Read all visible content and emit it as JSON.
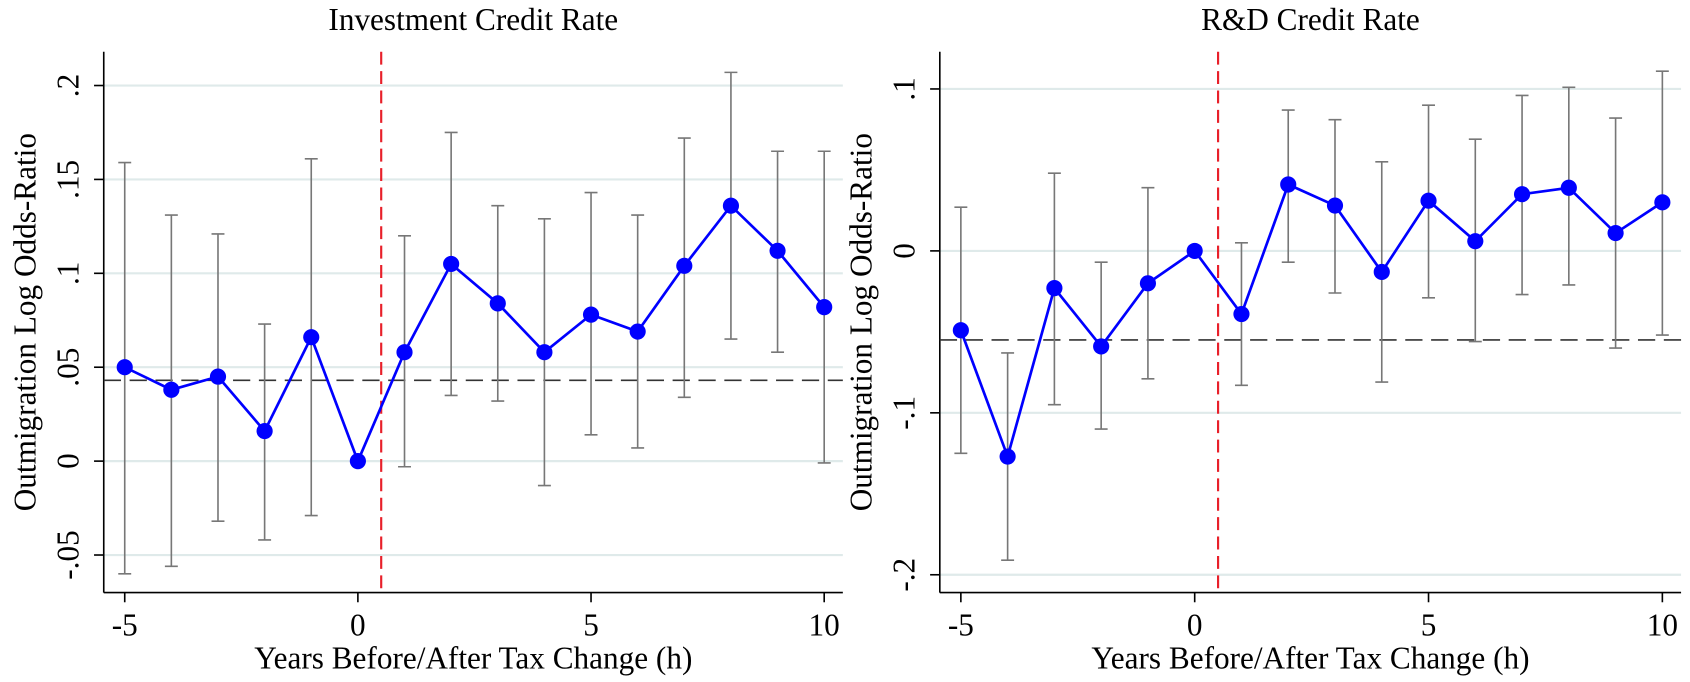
{
  "chart_data": [
    {
      "type": "errorbar-line",
      "title": "Investment Credit Rate",
      "x_label": "Years Before/After Tax Change (h)",
      "y_label": "Outmigration Log Odds-Ratio",
      "x": [
        -5,
        -4,
        -3,
        -2,
        -1,
        0,
        1,
        2,
        3,
        4,
        5,
        6,
        7,
        8,
        9,
        10
      ],
      "values": [
        0.05,
        0.038,
        0.045,
        0.016,
        0.066,
        0,
        0.058,
        0.105,
        0.084,
        0.058,
        0.078,
        0.069,
        0.104,
        0.136,
        0.112,
        0.082
      ],
      "ci_low": [
        -0.06,
        -0.056,
        -0.032,
        -0.042,
        -0.029,
        null,
        -0.003,
        0.035,
        0.032,
        -0.013,
        0.014,
        0.007,
        0.034,
        0.065,
        0.058,
        -0.001
      ],
      "ci_high": [
        0.159,
        0.131,
        0.121,
        0.073,
        0.161,
        null,
        0.12,
        0.175,
        0.136,
        0.129,
        0.143,
        0.131,
        0.172,
        0.207,
        0.165,
        0.165
      ],
      "color": "#0000ff",
      "ci_color": "#777777",
      "hline": 0.043,
      "vline": 0.5,
      "xlim": [
        -5.45,
        10.4
      ],
      "xticks": [
        -5,
        0,
        5,
        10
      ],
      "ylim": [
        -0.07,
        0.218
      ],
      "yticks": [
        {
          "value": -0.05,
          "label": "-.05"
        },
        0,
        {
          "value": 0.05,
          "label": ".05"
        },
        {
          "value": 0.1,
          "label": ".1"
        },
        {
          "value": 0.15,
          "label": ".15"
        },
        {
          "value": 0.2,
          "label": ".2"
        }
      ],
      "grid": true
    },
    {
      "type": "errorbar-line",
      "title": "R&D Credit Rate",
      "x_label": "Years Before/After Tax Change (h)",
      "y_label": "Outmigration Log Odds-Ratio",
      "x": [
        -5,
        -4,
        -3,
        -2,
        -1,
        0,
        1,
        2,
        3,
        4,
        5,
        6,
        7,
        8,
        9,
        10
      ],
      "values": [
        -0.049,
        -0.127,
        -0.023,
        -0.059,
        -0.02,
        0,
        -0.039,
        0.041,
        0.028,
        -0.013,
        0.031,
        0.006,
        0.035,
        0.039,
        0.011,
        0.03
      ],
      "ci_low": [
        -0.125,
        -0.191,
        -0.095,
        -0.11,
        -0.079,
        null,
        -0.083,
        -0.007,
        -0.026,
        -0.081,
        -0.029,
        -0.056,
        -0.027,
        -0.021,
        -0.06,
        -0.052
      ],
      "ci_high": [
        0.027,
        -0.063,
        0.048,
        -0.007,
        0.039,
        null,
        0.005,
        0.087,
        0.081,
        0.055,
        0.09,
        0.069,
        0.096,
        0.101,
        0.082,
        0.111
      ],
      "color": "#0000ff",
      "ci_color": "#777777",
      "hline": -0.055,
      "vline": 0.5,
      "xlim": [
        -5.45,
        10.4
      ],
      "xticks": [
        -5,
        0,
        5,
        10
      ],
      "ylim": [
        -0.211,
        0.123
      ],
      "yticks": [
        {
          "value": -0.2,
          "label": "-.2"
        },
        {
          "value": -0.1,
          "label": "-.1"
        },
        0,
        {
          "value": 0.1,
          "label": ".1"
        }
      ],
      "grid": true
    }
  ]
}
